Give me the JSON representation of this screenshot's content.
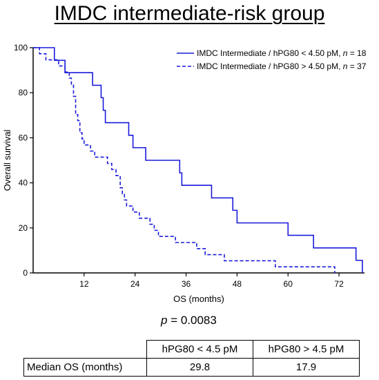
{
  "title": "IMDC intermediate-risk group",
  "chart_data": {
    "type": "line",
    "xlabel": "OS (months)",
    "ylabel": "Overall survival",
    "xlim": [
      0,
      78
    ],
    "ylim": [
      0,
      100
    ],
    "xticks": [
      12,
      24,
      36,
      48,
      60,
      72
    ],
    "yticks": [
      0,
      20,
      40,
      60,
      80,
      100
    ],
    "legend_position": "top-right",
    "series": [
      {
        "name": "IMDC Intermediate / hPG80 < 4.50 pM, n = 18",
        "line_style": "solid",
        "color": "#1a1adb",
        "steps": [
          [
            0,
            100
          ],
          [
            5,
            94.4
          ],
          [
            7.5,
            88.9
          ],
          [
            14,
            83.3
          ],
          [
            16,
            77.8
          ],
          [
            16.5,
            72.2
          ],
          [
            17,
            66.7
          ],
          [
            22.5,
            61.1
          ],
          [
            23.5,
            55.6
          ],
          [
            26.5,
            50
          ],
          [
            34.5,
            44.4
          ],
          [
            35,
            38.9
          ],
          [
            42,
            33.3
          ],
          [
            47,
            27.8
          ],
          [
            48,
            22.2
          ],
          [
            60,
            16.7
          ],
          [
            66,
            11.1
          ],
          [
            76,
            5.6
          ],
          [
            77.5,
            0
          ]
        ]
      },
      {
        "name": "IMDC Intermediate / hPG80 > 4.50 pM, n = 37",
        "line_style": "dashed",
        "color": "#1a1adb",
        "steps": [
          [
            0,
            100
          ],
          [
            1.5,
            97.3
          ],
          [
            3,
            94.6
          ],
          [
            6,
            91.9
          ],
          [
            7.5,
            89.2
          ],
          [
            8.5,
            86.5
          ],
          [
            9,
            83.8
          ],
          [
            9.5,
            78.4
          ],
          [
            10,
            70.3
          ],
          [
            10.5,
            67.6
          ],
          [
            11,
            62.2
          ],
          [
            11.5,
            59.5
          ],
          [
            12,
            56.8
          ],
          [
            13.5,
            54.1
          ],
          [
            14.5,
            51.4
          ],
          [
            17.5,
            48.6
          ],
          [
            18.5,
            45.9
          ],
          [
            19.5,
            43.2
          ],
          [
            20.5,
            37.8
          ],
          [
            21,
            35.1
          ],
          [
            21.5,
            32.4
          ],
          [
            22,
            29.7
          ],
          [
            23.5,
            27
          ],
          [
            25,
            24.3
          ],
          [
            27.5,
            21.6
          ],
          [
            28.5,
            18.9
          ],
          [
            29.5,
            16.2
          ],
          [
            33.5,
            13.5
          ],
          [
            38.5,
            10.8
          ],
          [
            40.5,
            8.1
          ],
          [
            45,
            5.4
          ],
          [
            57,
            2.7
          ],
          [
            71,
            0
          ]
        ]
      }
    ]
  },
  "p_value": {
    "prefix": "p",
    "text": " = 0.0083"
  },
  "table": {
    "headers": [
      "hPG80 < 4.5 pM",
      "hPG80 > 4.5 pM"
    ],
    "row_label": "Median OS (months)",
    "values": [
      "29.8",
      "17.9"
    ]
  }
}
